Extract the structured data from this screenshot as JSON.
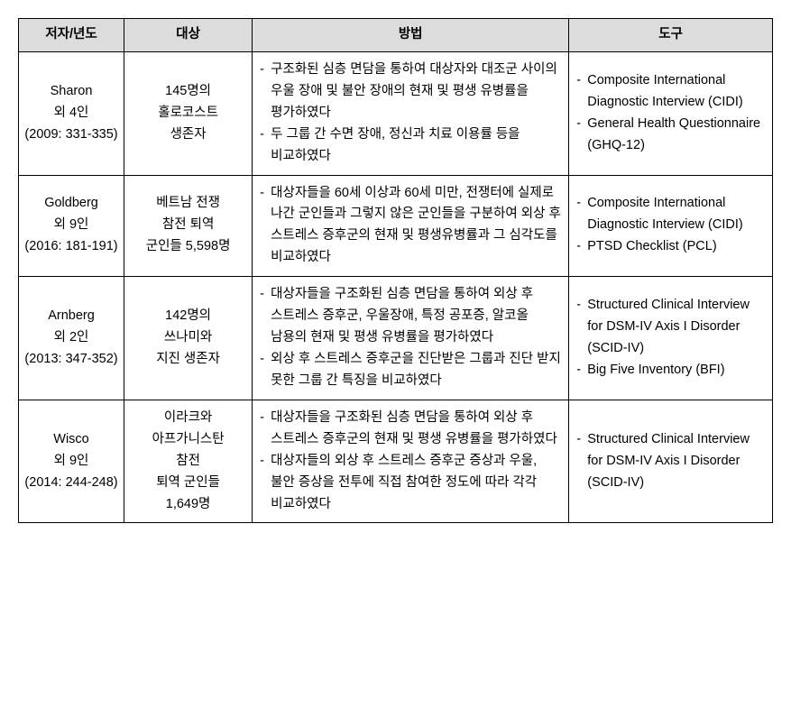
{
  "table": {
    "headers": {
      "author": "저자/년도",
      "subject": "대상",
      "method": "방법",
      "tool": "도구"
    },
    "rows": [
      {
        "author": "Sharon\n외 4인\n(2009: 331-335)",
        "subject": "145명의\n홀로코스트\n생존자",
        "methods": [
          "구조화된 심층 면담을 통하여 대상자와 대조군 사이의 우울 장애 및 불안 장애의 현재 및 평생 유병률을 평가하였다",
          "두 그룹 간 수면 장애, 정신과 치료 이용률 등을 비교하였다"
        ],
        "tools": [
          "Composite International Diagnostic Interview (CIDI)",
          "General Health Questionnaire (GHQ-12)"
        ]
      },
      {
        "author": "Goldberg\n외 9인\n(2016: 181-191)",
        "subject": "베트남 전쟁\n참전 퇴역\n군인들 5,598명",
        "methods": [
          "대상자들을 60세 이상과 60세 미만, 전쟁터에 실제로 나간 군인들과 그렇지 않은 군인들을 구분하여 외상 후 스트레스 증후군의 현재 및 평생유병률과 그 심각도를 비교하였다"
        ],
        "tools": [
          "Composite International Diagnostic Interview (CIDI)",
          "PTSD Checklist (PCL)"
        ]
      },
      {
        "author": "Arnberg\n외 2인\n(2013: 347-352)",
        "subject": "142명의\n쓰나미와\n지진 생존자",
        "methods": [
          "대상자들을 구조화된 심층 면담을 통하여 외상 후 스트레스 증후군, 우울장애, 특정 공포증, 알코올 남용의 현재 및 평생 유병률을 평가하였다",
          "외상 후 스트레스 증후군을 진단받은 그룹과 진단 받지 못한 그룹 간 특징을 비교하였다"
        ],
        "tools": [
          "Structured Clinical Interview for DSM-IV Axis I Disorder (SCID-IV)",
          "Big Five Inventory (BFI)"
        ]
      },
      {
        "author": "Wisco\n외 9인\n(2014: 244-248)",
        "subject": "이라크와\n아프가니스탄\n참전\n퇴역 군인들\n1,649명",
        "methods": [
          "대상자들을 구조화된 심층 면담을 통하여 외상 후 스트레스 증후군의 현재 및 평생 유병률을 평가하였다",
          "대상자들의 외상 후 스트레스 증후군 증상과 우울, 불안 증상을 전투에 직접 참여한 정도에 따라 각각 비교하였다"
        ],
        "tools": [
          "Structured Clinical Interview for DSM-IV Axis I Disorder (SCID-IV)"
        ]
      }
    ]
  }
}
